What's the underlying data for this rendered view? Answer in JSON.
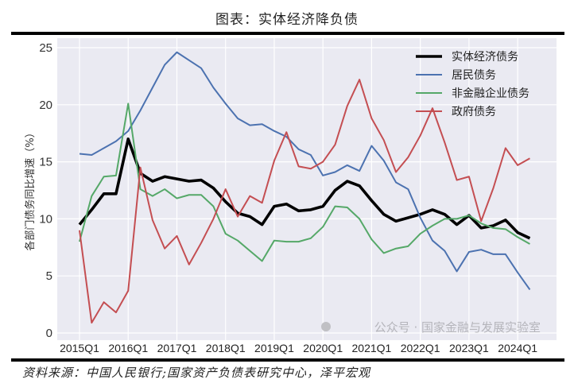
{
  "title": "图表：实体经济降负债",
  "source": "资料来源：中国人民银行;国家资产负债表研究中心，泽平宏观",
  "watermark": "公众号 · 国家金融与发展实验室",
  "chart_data": {
    "type": "line",
    "title": "",
    "xlabel": "",
    "ylabel": "各部门债务同比增速（%）",
    "ylim": [
      -0.6,
      25.6
    ],
    "yticks": [
      0,
      5,
      10,
      15,
      20,
      25
    ],
    "xticks": [
      "2015Q1",
      "2016Q1",
      "2017Q1",
      "2018Q1",
      "2019Q1",
      "2020Q1",
      "2021Q1",
      "2022Q1",
      "2023Q1",
      "2024Q1"
    ],
    "grid": true,
    "legend_position": "top-right",
    "x": [
      "2015Q1",
      "2015Q2",
      "2015Q3",
      "2015Q4",
      "2016Q1",
      "2016Q2",
      "2016Q3",
      "2016Q4",
      "2017Q1",
      "2017Q2",
      "2017Q3",
      "2017Q4",
      "2018Q1",
      "2018Q2",
      "2018Q3",
      "2018Q4",
      "2019Q1",
      "2019Q2",
      "2019Q3",
      "2019Q4",
      "2020Q1",
      "2020Q2",
      "2020Q3",
      "2020Q4",
      "2021Q1",
      "2021Q2",
      "2021Q3",
      "2021Q4",
      "2022Q1",
      "2022Q2",
      "2022Q3",
      "2022Q4",
      "2023Q1",
      "2023Q2",
      "2023Q3",
      "2023Q4",
      "2024Q1",
      "2024Q2"
    ],
    "series": [
      {
        "name": "实体经济债务",
        "color": "#000000",
        "values": [
          9.5,
          10.8,
          12.2,
          12.2,
          17.0,
          14.0,
          13.3,
          13.7,
          13.5,
          13.3,
          13.4,
          12.7,
          11.5,
          10.5,
          10.2,
          9.5,
          11.1,
          11.3,
          10.7,
          10.8,
          11.1,
          12.5,
          13.3,
          12.9,
          11.6,
          10.4,
          9.8,
          10.1,
          10.4,
          10.8,
          10.4,
          9.5,
          10.3,
          9.2,
          9.4,
          9.9,
          8.8,
          8.3
        ]
      },
      {
        "name": "居民债务",
        "color": "#4c72b0",
        "values": [
          15.7,
          15.6,
          16.2,
          16.8,
          17.7,
          19.5,
          21.5,
          23.5,
          24.6,
          23.9,
          23.2,
          21.5,
          20.1,
          18.8,
          18.2,
          18.3,
          17.7,
          17.2,
          16.1,
          15.6,
          13.8,
          14.1,
          14.7,
          14.2,
          16.4,
          15.1,
          13.2,
          12.6,
          10.1,
          8.1,
          7.2,
          5.4,
          7.1,
          7.3,
          6.9,
          6.9,
          5.3,
          3.8
        ]
      },
      {
        "name": "非金融企业债务",
        "color": "#55a868",
        "values": [
          8.0,
          12.0,
          13.7,
          13.8,
          20.1,
          12.6,
          12.0,
          12.6,
          11.8,
          12.1,
          12.1,
          11.1,
          8.7,
          8.1,
          7.2,
          6.3,
          8.1,
          8.0,
          8.0,
          8.3,
          9.3,
          11.1,
          11.0,
          10.0,
          8.2,
          7.0,
          7.4,
          7.6,
          8.7,
          9.4,
          10.0,
          10.0,
          10.3,
          9.6,
          9.2,
          9.1,
          8.4,
          7.8
        ]
      },
      {
        "name": "政府债务",
        "color": "#c44e52",
        "values": [
          9.0,
          0.9,
          2.7,
          1.8,
          3.7,
          14.5,
          9.9,
          7.4,
          8.5,
          6.0,
          7.9,
          10.0,
          12.6,
          10.2,
          12.0,
          11.4,
          15.1,
          17.6,
          14.6,
          14.4,
          15.0,
          16.5,
          19.9,
          22.2,
          18.8,
          16.9,
          14.1,
          15.4,
          17.3,
          19.7,
          16.7,
          13.4,
          13.7,
          9.8,
          12.7,
          16.2,
          14.7,
          15.3
        ]
      }
    ]
  }
}
